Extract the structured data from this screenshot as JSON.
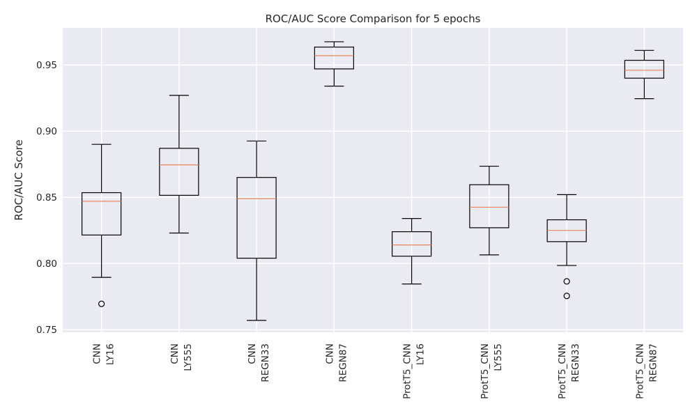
{
  "chart_data": {
    "type": "box",
    "title": "ROC/AUC Score Comparison for 5 epochs",
    "xlabel": "",
    "ylabel": "ROC/AUC Score",
    "ylim": [
      0.748,
      0.978
    ],
    "yticks": [
      "0.75",
      "0.80",
      "0.85",
      "0.90",
      "0.95"
    ],
    "grid": true,
    "colors": {
      "background": "#EAEAF2",
      "grid": "#FFFFFF",
      "box": "#000000",
      "median": "#E8855A"
    },
    "categories": [
      [
        "CNN",
        "LY16"
      ],
      [
        "CNN",
        "LY555"
      ],
      [
        "CNN",
        "REGN33"
      ],
      [
        "CNN",
        "REGN87"
      ],
      [
        "ProtT5_CNN",
        "LY16"
      ],
      [
        "ProtT5_CNN",
        "LY555"
      ],
      [
        "ProtT5_CNN",
        "REGN33"
      ],
      [
        "ProtT5_CNN",
        "REGN87"
      ]
    ],
    "boxes": [
      {
        "whislo": 0.7895,
        "q1": 0.8215,
        "med": 0.847,
        "q3": 0.8535,
        "whishi": 0.89,
        "fliers": [
          0.7695
        ]
      },
      {
        "whislo": 0.823,
        "q1": 0.8515,
        "med": 0.8745,
        "q3": 0.887,
        "whishi": 0.927,
        "fliers": []
      },
      {
        "whislo": 0.757,
        "q1": 0.804,
        "med": 0.849,
        "q3": 0.865,
        "whishi": 0.8925,
        "fliers": []
      },
      {
        "whislo": 0.934,
        "q1": 0.947,
        "med": 0.957,
        "q3": 0.9635,
        "whishi": 0.9675,
        "fliers": []
      },
      {
        "whislo": 0.7845,
        "q1": 0.8055,
        "med": 0.814,
        "q3": 0.824,
        "whishi": 0.834,
        "fliers": []
      },
      {
        "whislo": 0.8065,
        "q1": 0.827,
        "med": 0.8425,
        "q3": 0.8595,
        "whishi": 0.8735,
        "fliers": []
      },
      {
        "whislo": 0.7985,
        "q1": 0.8165,
        "med": 0.825,
        "q3": 0.833,
        "whishi": 0.852,
        "fliers": [
          0.7865,
          0.7755
        ]
      },
      {
        "whislo": 0.9245,
        "q1": 0.94,
        "med": 0.946,
        "q3": 0.9535,
        "whishi": 0.961,
        "fliers": []
      }
    ]
  }
}
